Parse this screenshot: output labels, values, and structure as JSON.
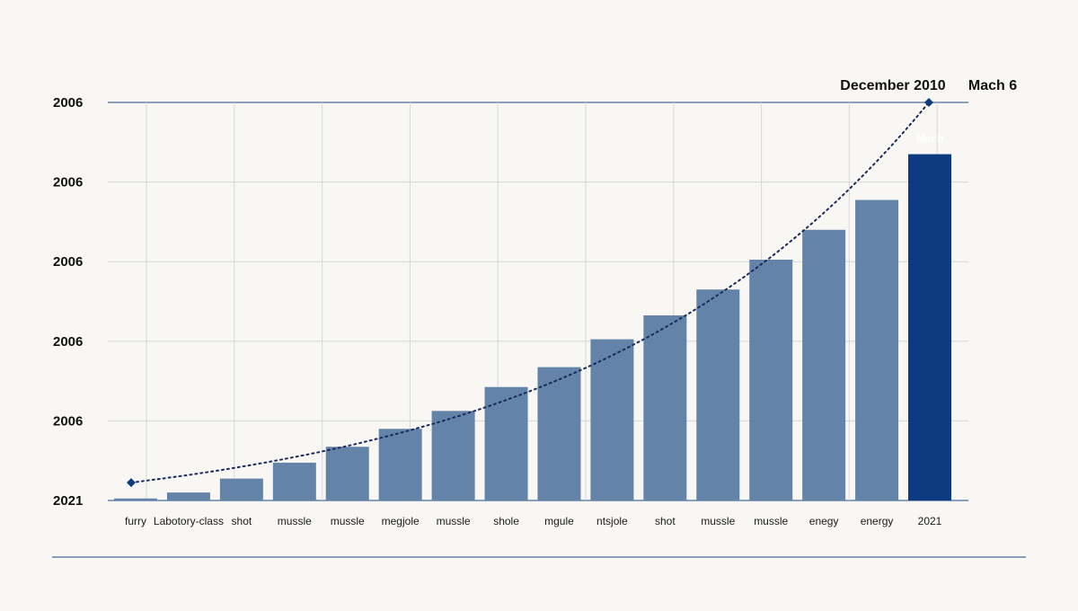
{
  "chart_data": {
    "type": "bar",
    "title": "",
    "xlabel": "",
    "ylabel": "",
    "y_tick_labels": [
      "2021",
      "2006",
      "2006",
      "2006",
      "2006",
      "2006"
    ],
    "categories": [
      "furry",
      "Labotory-class",
      "shot",
      "mussle",
      "mussle",
      "megjole",
      "mussle",
      "shole",
      "mgule",
      "ntsjole",
      "shot",
      "mussle",
      "mussle",
      "enegy",
      "energy",
      "2021"
    ],
    "values": [
      0.5,
      2,
      5.5,
      9.5,
      13.5,
      18,
      22.5,
      28.5,
      33.5,
      40.5,
      46.5,
      53,
      60.5,
      68,
      75.5,
      87
    ],
    "highlight_index": 15,
    "highlight_bar_label": "Mach",
    "trend_line": {
      "style": "dotted",
      "start_value": 4.5,
      "end_value": 100
    },
    "annotations": [
      "December 2010",
      "Mach 6"
    ],
    "ylim": [
      0,
      100
    ],
    "grid": true,
    "colors": {
      "bar": "#6483a8",
      "highlight": "#0d3a80",
      "trend": "#1a2a60",
      "grid": "#d4d7dd",
      "axis": "#4a6a9a"
    }
  }
}
